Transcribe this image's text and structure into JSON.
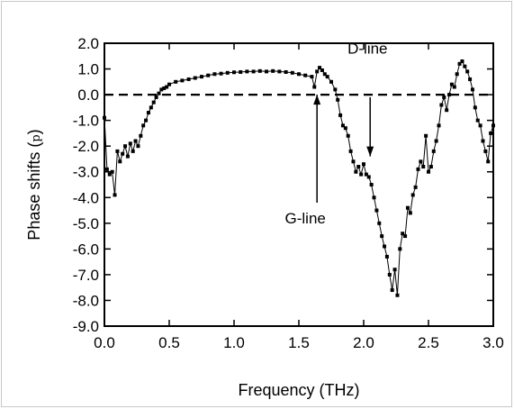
{
  "chart_data": {
    "type": "line",
    "title": "",
    "xlabel": "Frequency (THz)",
    "ylabel_main": "Phase shifts (",
    "ylabel_symbol": "p",
    "ylabel_close": ")",
    "xlim": [
      0.0,
      3.0
    ],
    "ylim": [
      -9.0,
      2.0
    ],
    "x_ticks": [
      0.0,
      0.5,
      1.0,
      1.5,
      2.0,
      2.5,
      3.0
    ],
    "x_tick_labels": [
      "0.0",
      "0.5",
      "1.0",
      "1.5",
      "2.0",
      "2.5",
      "3.0"
    ],
    "y_ticks": [
      2.0,
      1.0,
      0.0,
      -1.0,
      -2.0,
      -3.0,
      -4.0,
      -5.0,
      -6.0,
      -7.0,
      -8.0,
      -9.0
    ],
    "y_tick_labels": [
      "2.0",
      "1.0",
      "0.0",
      "-1.0",
      "-2.0",
      "-3.0",
      "-4.0",
      "-5.0",
      "-6.0",
      "-7.0",
      "-8.0",
      "-9.0"
    ],
    "grid": false,
    "reference_line": {
      "y": 0.0,
      "style": "dashed"
    },
    "series": [
      {
        "color": "#000000",
        "marker": "square",
        "x": [
          0.0,
          0.02,
          0.04,
          0.06,
          0.08,
          0.1,
          0.12,
          0.14,
          0.16,
          0.18,
          0.2,
          0.22,
          0.24,
          0.26,
          0.28,
          0.3,
          0.32,
          0.34,
          0.36,
          0.38,
          0.4,
          0.42,
          0.44,
          0.46,
          0.48,
          0.5,
          0.55,
          0.6,
          0.65,
          0.7,
          0.75,
          0.8,
          0.85,
          0.9,
          0.95,
          1.0,
          1.05,
          1.1,
          1.15,
          1.2,
          1.25,
          1.3,
          1.35,
          1.4,
          1.45,
          1.5,
          1.55,
          1.6,
          1.62,
          1.64,
          1.66,
          1.68,
          1.7,
          1.72,
          1.75,
          1.78,
          1.8,
          1.82,
          1.84,
          1.86,
          1.88,
          1.9,
          1.92,
          1.94,
          1.96,
          1.98,
          2.0,
          2.02,
          2.04,
          2.06,
          2.08,
          2.1,
          2.12,
          2.14,
          2.16,
          2.18,
          2.2,
          2.22,
          2.24,
          2.26,
          2.28,
          2.3,
          2.32,
          2.34,
          2.36,
          2.38,
          2.4,
          2.42,
          2.44,
          2.46,
          2.48,
          2.5,
          2.52,
          2.54,
          2.56,
          2.58,
          2.6,
          2.62,
          2.64,
          2.66,
          2.68,
          2.7,
          2.72,
          2.74,
          2.76,
          2.78,
          2.8,
          2.82,
          2.84,
          2.86,
          2.88,
          2.9,
          2.92,
          2.94,
          2.96,
          2.98,
          3.0
        ],
        "y": [
          -0.9,
          -2.9,
          -3.1,
          -3.0,
          -3.9,
          -2.2,
          -2.6,
          -2.3,
          -2.0,
          -2.4,
          -1.9,
          -2.2,
          -1.8,
          -2.0,
          -1.6,
          -1.2,
          -1.0,
          -0.7,
          -0.5,
          -0.3,
          -0.1,
          0.05,
          0.2,
          0.25,
          0.3,
          0.4,
          0.5,
          0.55,
          0.6,
          0.65,
          0.7,
          0.75,
          0.8,
          0.82,
          0.85,
          0.87,
          0.88,
          0.9,
          0.9,
          0.92,
          0.9,
          0.92,
          0.9,
          0.88,
          0.85,
          0.8,
          0.75,
          0.7,
          0.3,
          0.9,
          1.05,
          0.95,
          0.8,
          0.7,
          0.5,
          0.2,
          -0.2,
          -0.8,
          -1.2,
          -1.3,
          -1.6,
          -2.2,
          -2.6,
          -3.0,
          -2.8,
          -3.1,
          -2.7,
          -3.1,
          -3.2,
          -3.5,
          -4.0,
          -4.5,
          -5.0,
          -5.5,
          -5.9,
          -6.3,
          -7.0,
          -7.6,
          -6.8,
          -7.8,
          -6.0,
          -5.4,
          -5.5,
          -4.4,
          -4.6,
          -3.9,
          -3.6,
          -2.9,
          -2.6,
          -2.8,
          -1.6,
          -3.0,
          -2.8,
          -2.2,
          -1.8,
          -1.2,
          -0.4,
          -0.1,
          -0.6,
          0.0,
          0.4,
          0.3,
          0.8,
          1.2,
          1.3,
          1.1,
          0.9,
          0.6,
          0.2,
          -0.5,
          -1.0,
          -1.2,
          -1.8,
          -2.2,
          -2.6,
          -1.5,
          -1.2
        ]
      }
    ],
    "annotations": [
      {
        "text": "G-line",
        "arrow_x": 1.64,
        "arrow_tip_y": 0.0,
        "arrow_tail_y": -4.2,
        "label_x": 1.55,
        "label_y": -5.0
      },
      {
        "text": "D-line",
        "arrow_x": 2.05,
        "arrow_tip_y": -2.4,
        "arrow_tail_y": -0.1,
        "label_x": 2.03,
        "label_y": 1.6
      }
    ]
  }
}
